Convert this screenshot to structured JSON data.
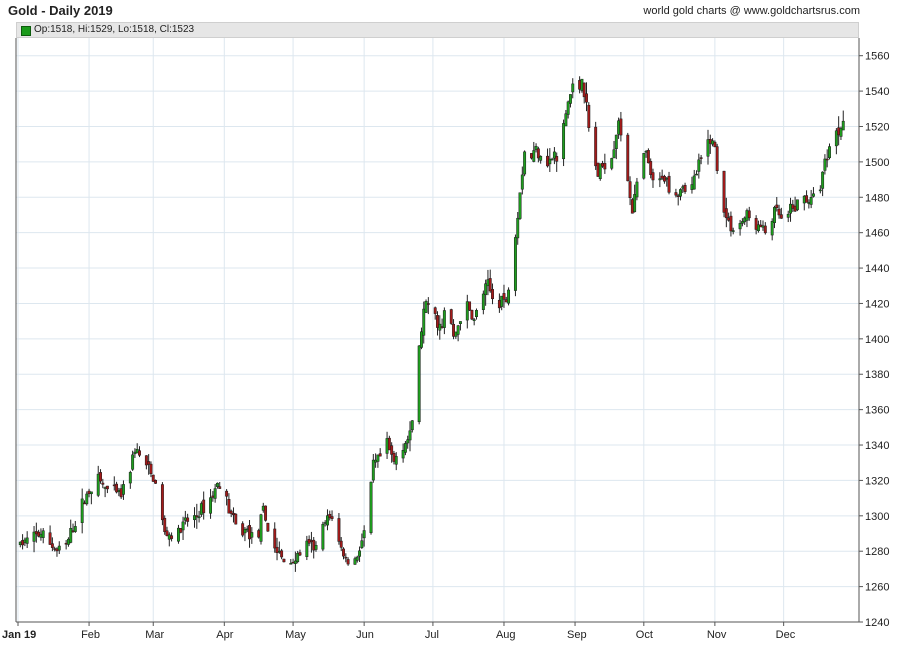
{
  "header": {
    "title": "Gold - Daily 2019",
    "credit": "world gold charts @ www.goldchartsrus.com"
  },
  "legend": {
    "text": "Op:1518, Hi:1529, Lo:1518, Cl:1523"
  },
  "colors": {
    "up": "#1e9e1e",
    "down": "#a31a1a",
    "wick": "#222222",
    "grid": "#dde7ef",
    "axis": "#555555"
  },
  "chart_data": {
    "type": "candlestick",
    "title": "Gold - Daily 2019",
    "x_tick_labels": [
      "Jan 19",
      "Feb",
      "Mar",
      "Apr",
      "May",
      "Jun",
      "Jul",
      "Aug",
      "Sep",
      "Oct",
      "Nov",
      "Dec"
    ],
    "x_tick_days": [
      0,
      31,
      59,
      90,
      120,
      151,
      181,
      212,
      243,
      273,
      304,
      334
    ],
    "y_ticks": [
      1240,
      1260,
      1280,
      1300,
      1320,
      1340,
      1360,
      1380,
      1400,
      1420,
      1440,
      1460,
      1480,
      1500,
      1520,
      1540,
      1560
    ],
    "ylim": [
      1240,
      1570
    ],
    "xlim": [
      0,
      366
    ],
    "grid": true,
    "y_axis_side": "right",
    "last_bar": {
      "open": 1518,
      "high": 1529,
      "low": 1518,
      "close": 1523
    },
    "price_path": [
      [
        1,
        1284
      ],
      [
        10,
        1290
      ],
      [
        17,
        1280
      ],
      [
        21,
        1283
      ],
      [
        26,
        1300
      ],
      [
        30,
        1312
      ],
      [
        34,
        1322
      ],
      [
        40,
        1313
      ],
      [
        45,
        1312
      ],
      [
        48,
        1322
      ],
      [
        51,
        1338
      ],
      [
        56,
        1328
      ],
      [
        60,
        1318
      ],
      [
        64,
        1290
      ],
      [
        69,
        1288
      ],
      [
        73,
        1296
      ],
      [
        78,
        1300
      ],
      [
        84,
        1310
      ],
      [
        88,
        1320
      ],
      [
        92,
        1304
      ],
      [
        96,
        1290
      ],
      [
        100,
        1292
      ],
      [
        104,
        1285
      ],
      [
        107,
        1302
      ],
      [
        111,
        1284
      ],
      [
        114,
        1278
      ],
      [
        117,
        1272
      ],
      [
        121,
        1276
      ],
      [
        126,
        1283
      ],
      [
        130,
        1282
      ],
      [
        134,
        1296
      ],
      [
        137,
        1300
      ],
      [
        140,
        1285
      ],
      [
        143,
        1275
      ],
      [
        146,
        1272
      ],
      [
        149,
        1282
      ],
      [
        152,
        1294
      ],
      [
        155,
        1328
      ],
      [
        158,
        1333
      ],
      [
        161,
        1340
      ],
      [
        164,
        1330
      ],
      [
        166,
        1338
      ],
      [
        169,
        1342
      ],
      [
        171,
        1344
      ],
      [
        173,
        1365
      ],
      [
        175,
        1395
      ],
      [
        177,
        1415
      ],
      [
        179,
        1420
      ],
      [
        182,
        1412
      ],
      [
        185,
        1405
      ],
      [
        187,
        1425
      ],
      [
        190,
        1400
      ],
      [
        193,
        1412
      ],
      [
        196,
        1418
      ],
      [
        199,
        1410
      ],
      [
        202,
        1424
      ],
      [
        205,
        1430
      ],
      [
        207,
        1423
      ],
      [
        209,
        1418
      ],
      [
        211,
        1424
      ],
      [
        213,
        1420
      ],
      [
        215,
        1440
      ],
      [
        217,
        1460
      ],
      [
        219,
        1484
      ],
      [
        221,
        1506
      ],
      [
        223,
        1500
      ],
      [
        226,
        1508
      ],
      [
        229,
        1503
      ],
      [
        232,
        1500
      ],
      [
        234,
        1504
      ],
      [
        236,
        1496
      ],
      [
        238,
        1520
      ],
      [
        240,
        1534
      ],
      [
        242,
        1542
      ],
      [
        244,
        1536
      ],
      [
        246,
        1548
      ],
      [
        248,
        1530
      ],
      [
        250,
        1507
      ],
      [
        253,
        1493
      ],
      [
        256,
        1500
      ],
      [
        258,
        1497
      ],
      [
        260,
        1510
      ],
      [
        262,
        1525
      ],
      [
        264,
        1500
      ],
      [
        266,
        1490
      ],
      [
        268,
        1473
      ],
      [
        270,
        1486
      ],
      [
        272,
        1504
      ],
      [
        274,
        1503
      ],
      [
        276,
        1493
      ],
      [
        278,
        1480
      ],
      [
        281,
        1493
      ],
      [
        284,
        1487
      ],
      [
        287,
        1482
      ],
      [
        290,
        1487
      ],
      [
        293,
        1482
      ],
      [
        296,
        1494
      ],
      [
        299,
        1504
      ],
      [
        302,
        1514
      ],
      [
        304,
        1508
      ],
      [
        306,
        1484
      ],
      [
        309,
        1468
      ],
      [
        312,
        1462
      ],
      [
        315,
        1465
      ],
      [
        318,
        1470
      ],
      [
        321,
        1464
      ],
      [
        324,
        1463
      ],
      [
        326,
        1460
      ],
      [
        328,
        1464
      ],
      [
        330,
        1472
      ],
      [
        332,
        1470
      ],
      [
        334,
        1463
      ],
      [
        337,
        1472
      ],
      [
        340,
        1476
      ],
      [
        343,
        1480
      ],
      [
        346,
        1478
      ],
      [
        349,
        1482
      ],
      [
        352,
        1500
      ],
      [
        355,
        1514
      ],
      [
        358,
        1518
      ],
      [
        360,
        1522
      ]
    ]
  }
}
